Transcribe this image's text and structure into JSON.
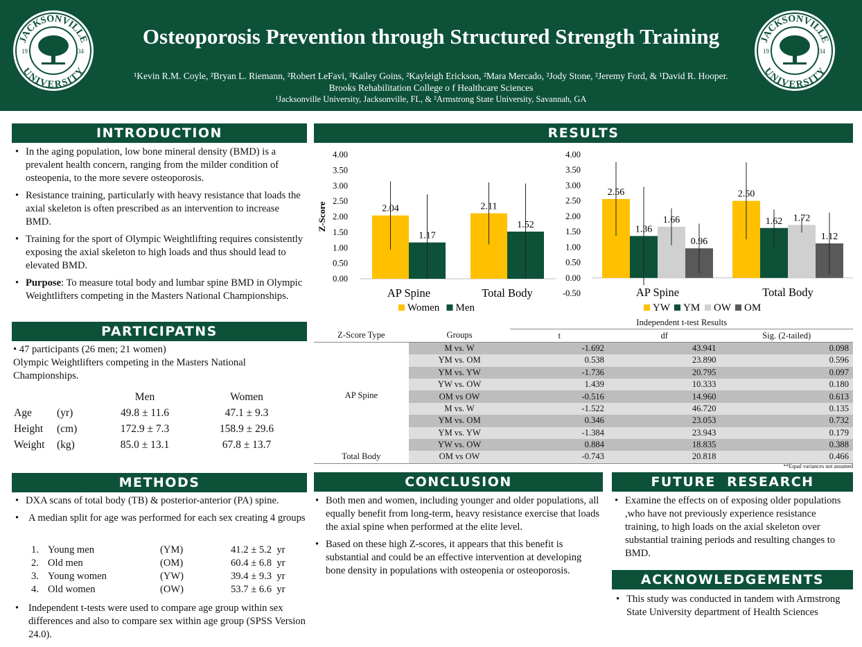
{
  "header": {
    "title": "Osteoporosis Prevention through Structured Strength Training",
    "authors": "¹Kevin R.M. Coyle, ²Bryan L. Riemann, ²Robert LeFavi, ²Kailey Goins, ²Kayleigh Erickson, ²Mara Mercado, ²Jody Stone, ²Jeremy Ford, & ¹David R. Hooper.",
    "college": "Brooks Rehabilitation College o f Healthcare Sciences",
    "affiliation": "¹Jacksonville University, Jacksonville, FL, & ²Armstrong State University, Savannah, GA",
    "seal": {
      "top": "JACKSONVILLE",
      "bottom": "UNIVERSITY",
      "left_year": "19",
      "right_year": "34"
    }
  },
  "introduction": {
    "heading": "INTRODUCTION",
    "bullets": [
      "In the aging population, low bone mineral density (BMD) is a prevalent health concern, ranging from the milder condition of osteopenia, to the more severe osteoporosis.",
      "Resistance training, particularly with heavy resistance that loads the axial skeleton is often prescribed as an intervention to increase BMD.",
      "Training for the sport of Olympic Weightlifting requires consistently exposing the axial skeleton to high loads and thus should lead to elevated BMD."
    ],
    "purpose_label": "Purpose",
    "purpose_text": ": To measure total body and lumbar spine BMD in Olympic Weightlifters competing in the Masters National Championships."
  },
  "participants": {
    "heading": "PARTICIPATNS",
    "line1": "47 participants   (26 men; 21 women)",
    "line2": "Olympic Weightlifters competing in the Masters National Championships.",
    "col_men": "Men",
    "col_women": "Women",
    "rows": [
      {
        "label": "Age",
        "unit": "(yr)",
        "men": "49.8 ± 11.6",
        "women": "47.1 ±   9.3"
      },
      {
        "label": "Height",
        "unit": "(cm)",
        "men": "172.9 ±   7.3",
        "women": "158.9 ± 29.6"
      },
      {
        "label": "Weight",
        "unit": "(kg)",
        "men": "85.0 ± 13.1",
        "women": "67.8 ± 13.7"
      }
    ]
  },
  "methods": {
    "heading": "METHODS",
    "bullet1": "DXA scans of total body (TB) & posterior-anterior (PA) spine.",
    "bullet2": "A median split for age was performed for each sex creating 4 groups",
    "groups": [
      {
        "num": "1.",
        "name": "Young men",
        "abbr": "(YM)",
        "value": "41.2 ± 5.2  yr"
      },
      {
        "num": "2.",
        "name": "Old men",
        "abbr": "(OM)",
        "value": "60.4 ± 6.8  yr"
      },
      {
        "num": "3.",
        "name": "Young women",
        "abbr": "(YW)",
        "value": "39.4 ± 9.3  yr"
      },
      {
        "num": "4.",
        "name": "Old women",
        "abbr": "(OW)",
        "value": "53.7 ± 6.6  yr"
      }
    ],
    "bullet3": "Independent t-tests were  used to compare age group within sex differences and also to compare sex within age group (SPSS Version 24.0)."
  },
  "results": {
    "heading": "RESULTS",
    "table": {
      "title": "Independent t-test Results",
      "headers": [
        "Z-Score Type",
        "Groups",
        "t",
        "df",
        "Sig. (2-tailed)"
      ],
      "type_ap": "AP Spine",
      "type_tb": "Total Body",
      "rows": [
        {
          "group": "M vs. W",
          "t": "-1.692",
          "df": "43.941",
          "sig": "0.098"
        },
        {
          "group": "YM vs. OM",
          "t": "0.538",
          "df": "23.890",
          "sig": "0.596"
        },
        {
          "group": "YM vs. YW",
          "t": "-1.736",
          "df": "20.795",
          "sig": "0.097"
        },
        {
          "group": "YW vs. OW",
          "t": "1.439",
          "df": "10.333",
          "sig": "0.180"
        },
        {
          "group": "OM vs OW",
          "t": "-0.516",
          "df": "14.960",
          "sig": "0.613"
        },
        {
          "group": "M vs. W",
          "t": "-1.522",
          "df": "46.720",
          "sig": "0.135"
        },
        {
          "group": "YM vs. OM",
          "t": "0.346",
          "df": "23.053",
          "sig": "0.732"
        },
        {
          "group": "YM vs. YW",
          "t": "-1.384",
          "df": "23.943",
          "sig": "0.179"
        },
        {
          "group": "YW vs. OW",
          "t": "0.884",
          "df": "18.835",
          "sig": "0.388"
        },
        {
          "group": "OM vs OW",
          "t": "-0.743",
          "df": "20.818",
          "sig": "0.466"
        }
      ],
      "footnote": "**Equal variances not assumed"
    }
  },
  "conclusion": {
    "heading": "CONCLUSION",
    "bullets": [
      "Both men and women, including younger and older populations, all equally benefit from long-term, heavy resistance exercise that loads the axial spine when performed at the elite level.",
      "Based on these high Z-scores, it appears that this benefit is substantial and could be an effective intervention at developing bone density in populations with osteopenia or osteoporosis."
    ]
  },
  "future": {
    "heading": "FUTURE  RESEARCH",
    "bullet": "Examine the effects on of exposing older populations ,who have not previously experience resistance training, to high loads on the axial skeleton over substantial training periods and resulting changes to BMD."
  },
  "acknowledgements": {
    "heading": "ACKNOWLEDGEMENTS",
    "bullet": "This study was conducted in tandem with Armstrong State University  department of Health Sciences"
  },
  "colors": {
    "green": "#0d5138",
    "yellow": "#ffc000",
    "light_gray": "#d0d0d0",
    "dark_gray": "#595959"
  },
  "chart_data": [
    {
      "type": "bar",
      "categories": [
        "AP Spine",
        "Total Body"
      ],
      "series": [
        {
          "name": "Women",
          "values": [
            2.04,
            2.11
          ],
          "color": "#ffc000",
          "err": [
            1.1,
            1.0
          ]
        },
        {
          "name": "Men",
          "values": [
            1.17,
            1.52
          ],
          "color": "#0d5138",
          "err": [
            1.55,
            1.55
          ]
        }
      ],
      "labels": [
        [
          "2.04",
          "2.11"
        ],
        [
          "1.17",
          "1.52"
        ]
      ],
      "ylabel": "Z-Score",
      "yticks": [
        "4.00",
        "3.50",
        "3.00",
        "2.50",
        "2.00",
        "1.50",
        "1.00",
        "0.50",
        "0.00"
      ],
      "ylim": [
        0,
        4
      ],
      "legend": "bottom"
    },
    {
      "type": "bar",
      "categories": [
        "AP Spine",
        "Total Body"
      ],
      "series": [
        {
          "name": "YW",
          "values": [
            2.56,
            2.5
          ],
          "color": "#ffc000",
          "err": [
            1.2,
            1.25
          ]
        },
        {
          "name": "YM",
          "values": [
            1.36,
            1.62
          ],
          "color": "#0d5138",
          "err": [
            1.6,
            0.6
          ]
        },
        {
          "name": "OW",
          "values": [
            1.66,
            1.72
          ],
          "color": "#d0d0d0",
          "err": [
            0.6,
            0.25
          ]
        },
        {
          "name": "OM",
          "values": [
            0.96,
            1.12
          ],
          "color": "#595959",
          "err": [
            0.8,
            1.0
          ]
        }
      ],
      "labels": [
        [
          "2.56",
          "2.50"
        ],
        [
          "1.36",
          "1.62"
        ],
        [
          "1.66",
          "1.72"
        ],
        [
          "0.96",
          "1.12"
        ]
      ],
      "yticks": [
        "4.00",
        "3.50",
        "3.00",
        "2.50",
        "2.00",
        "1.50",
        "1.00",
        "0.50",
        "0.00",
        "-0.50"
      ],
      "ylim": [
        -0.5,
        4
      ],
      "legend": "bottom"
    }
  ]
}
